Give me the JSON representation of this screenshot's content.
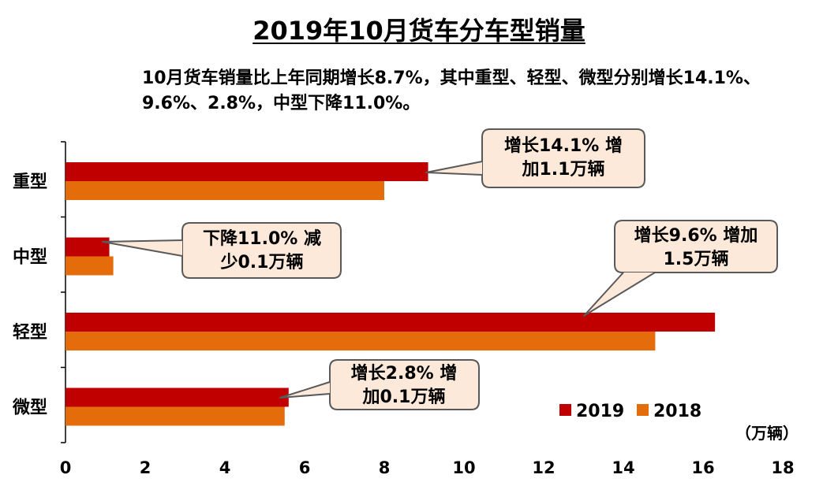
{
  "title": "2019年10月货车分车型销量",
  "subtitle": "10月货车销量比上年同期增长8.7%，其中重型、轻型、微型分别增长14.1%、9.6%、2.8%，中型下降11.0%。",
  "unit": "（万辆）",
  "chart_data": {
    "type": "bar",
    "orientation": "horizontal",
    "categories": [
      "重型",
      "中型",
      "轻型",
      "微型"
    ],
    "series": [
      {
        "name": "2019",
        "values": [
          9.1,
          1.1,
          16.3,
          5.6
        ],
        "color": "#c00000"
      },
      {
        "name": "2018",
        "values": [
          8.0,
          1.2,
          14.8,
          5.5
        ],
        "color": "#e46c0a"
      }
    ],
    "xlim": [
      0,
      18
    ],
    "ticks": [
      "0",
      "2",
      "4",
      "6",
      "8",
      "10",
      "12",
      "14",
      "16",
      "18"
    ],
    "legend": "bottom-right",
    "grid": false,
    "annotations": [
      {
        "category": "重型",
        "lines": [
          "增长14.1% 增",
          "加1.1万辆"
        ]
      },
      {
        "category": "中型",
        "lines": [
          "下降11.0% 减",
          "少0.1万辆"
        ]
      },
      {
        "category": "轻型",
        "lines": [
          "增长9.6% 增加",
          "1.5万辆"
        ]
      },
      {
        "category": "微型",
        "lines": [
          "增长2.8% 增",
          "加0.1万辆"
        ]
      }
    ]
  }
}
